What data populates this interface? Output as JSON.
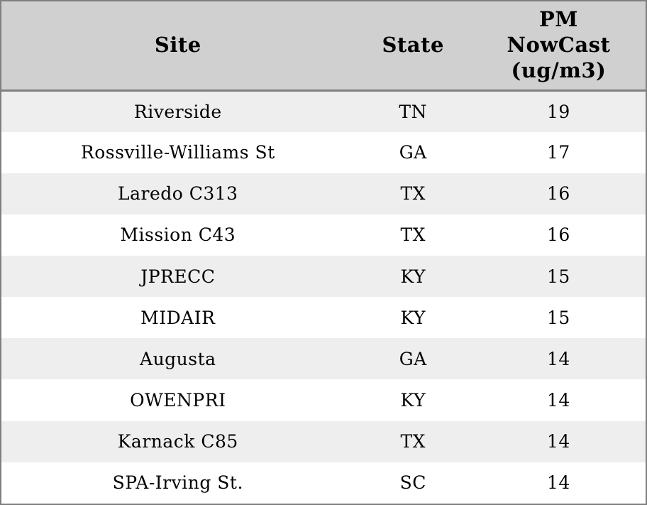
{
  "chart_data": {
    "type": "table",
    "columns": [
      "Site",
      "State",
      "PM NowCast (ug/m3)"
    ],
    "header_display": [
      "Site",
      "State",
      "PM\nNowCast\n(ug/m3)"
    ],
    "rows": [
      {
        "site": "Riverside",
        "state": "TN",
        "pm_nowcast": 19
      },
      {
        "site": "Rossville-Williams St",
        "state": "GA",
        "pm_nowcast": 17
      },
      {
        "site": "Laredo C313",
        "state": "TX",
        "pm_nowcast": 16
      },
      {
        "site": "Mission C43",
        "state": "TX",
        "pm_nowcast": 16
      },
      {
        "site": "JPRECC",
        "state": "KY",
        "pm_nowcast": 15
      },
      {
        "site": "MIDAIR",
        "state": "KY",
        "pm_nowcast": 15
      },
      {
        "site": "Augusta",
        "state": "GA",
        "pm_nowcast": 14
      },
      {
        "site": "OWENPRI",
        "state": "KY",
        "pm_nowcast": 14
      },
      {
        "site": "Karnack C85",
        "state": "TX",
        "pm_nowcast": 14
      },
      {
        "site": "SPA-Irving St.",
        "state": "SC",
        "pm_nowcast": 14
      }
    ],
    "layout": {
      "row_striping": "odd rows gray, even rows white",
      "alignment": "all cells centered"
    }
  },
  "colors": {
    "header_bg": "#d0d0d0",
    "border": "#7f7f7f",
    "row_odd_bg": "#eeeeee",
    "row_even_bg": "#ffffff",
    "text": "#000000"
  }
}
